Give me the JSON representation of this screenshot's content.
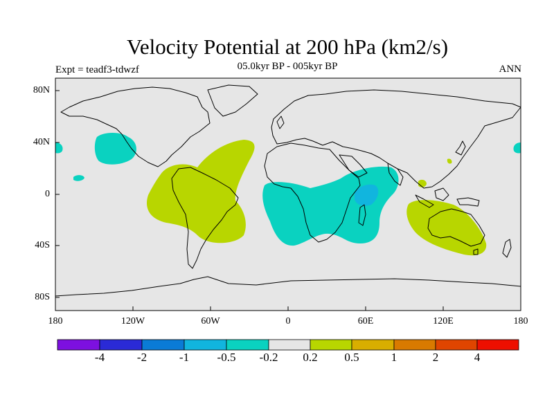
{
  "title": "Velocity Potential at 200 hPa (km2/s)",
  "subtitle": "05.0kyr BP - 005kyr BP",
  "left_label": "Expt = teadf3-tdwzf",
  "right_label": "ANN",
  "y_ticks": [
    "80N",
    "40N",
    "0",
    "40S",
    "80S"
  ],
  "x_ticks": [
    "180",
    "120W",
    "60W",
    "0",
    "60E",
    "120E",
    "180"
  ],
  "colorbar": {
    "labels": [
      "-4",
      "-2",
      "-1",
      "-0.5",
      "-0.2",
      "0.2",
      "0.5",
      "1",
      "2",
      "4"
    ],
    "colors": [
      "#7d10e0",
      "#2a2ad6",
      "#0a7bd6",
      "#11b5de",
      "#0ad2c0",
      "#e6e6e6",
      "#b8d600",
      "#d8ae00",
      "#d97a00",
      "#e04500",
      "#ee0f00"
    ]
  },
  "colors": {
    "land_background": "#e6e6e6",
    "positive": "#b8d600",
    "negative": "#0ad2c0",
    "stronger_negative": "#11b5de",
    "coast": "#000000"
  }
}
